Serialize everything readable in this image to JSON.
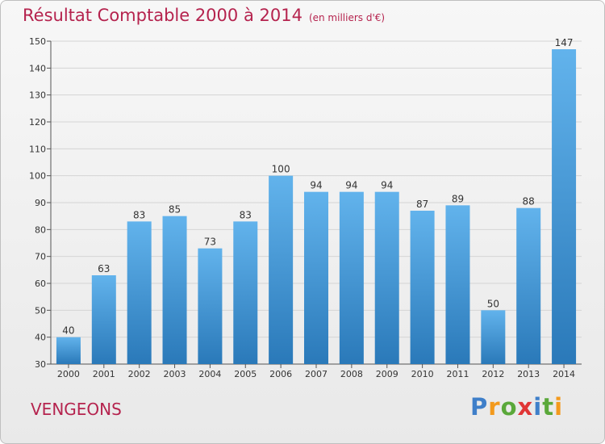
{
  "header": {
    "title": "Résultat Comptable 2000 à 2014",
    "unit": "(en milliers d'€)"
  },
  "footer": {
    "place": "VENGEONS",
    "logo_letters": [
      "P",
      "r",
      "o",
      "x",
      "i",
      "t",
      "i"
    ]
  },
  "colors": {
    "title": "#b5234e",
    "bar_top": "#62b3ec",
    "bar_bottom": "#2a79b9",
    "logo": [
      "#3f7fc9",
      "#f39a1d",
      "#5aa83a",
      "#e03535",
      "#3f7fc9",
      "#5aa83a",
      "#f39a1d"
    ]
  },
  "chart_data": {
    "type": "bar",
    "title": "Résultat Comptable 2000 à 2014",
    "ylabel": "",
    "xlabel": "",
    "categories": [
      "2000",
      "2001",
      "2002",
      "2003",
      "2004",
      "2005",
      "2006",
      "2007",
      "2008",
      "2009",
      "2010",
      "2011",
      "2012",
      "2013",
      "2014"
    ],
    "values": [
      40,
      63,
      83,
      85,
      73,
      83,
      100,
      94,
      94,
      94,
      87,
      89,
      50,
      88,
      147
    ],
    "ylim": [
      30,
      150
    ],
    "yticks": [
      30,
      40,
      50,
      60,
      70,
      80,
      90,
      100,
      110,
      120,
      130,
      140,
      150
    ],
    "grid": true
  }
}
